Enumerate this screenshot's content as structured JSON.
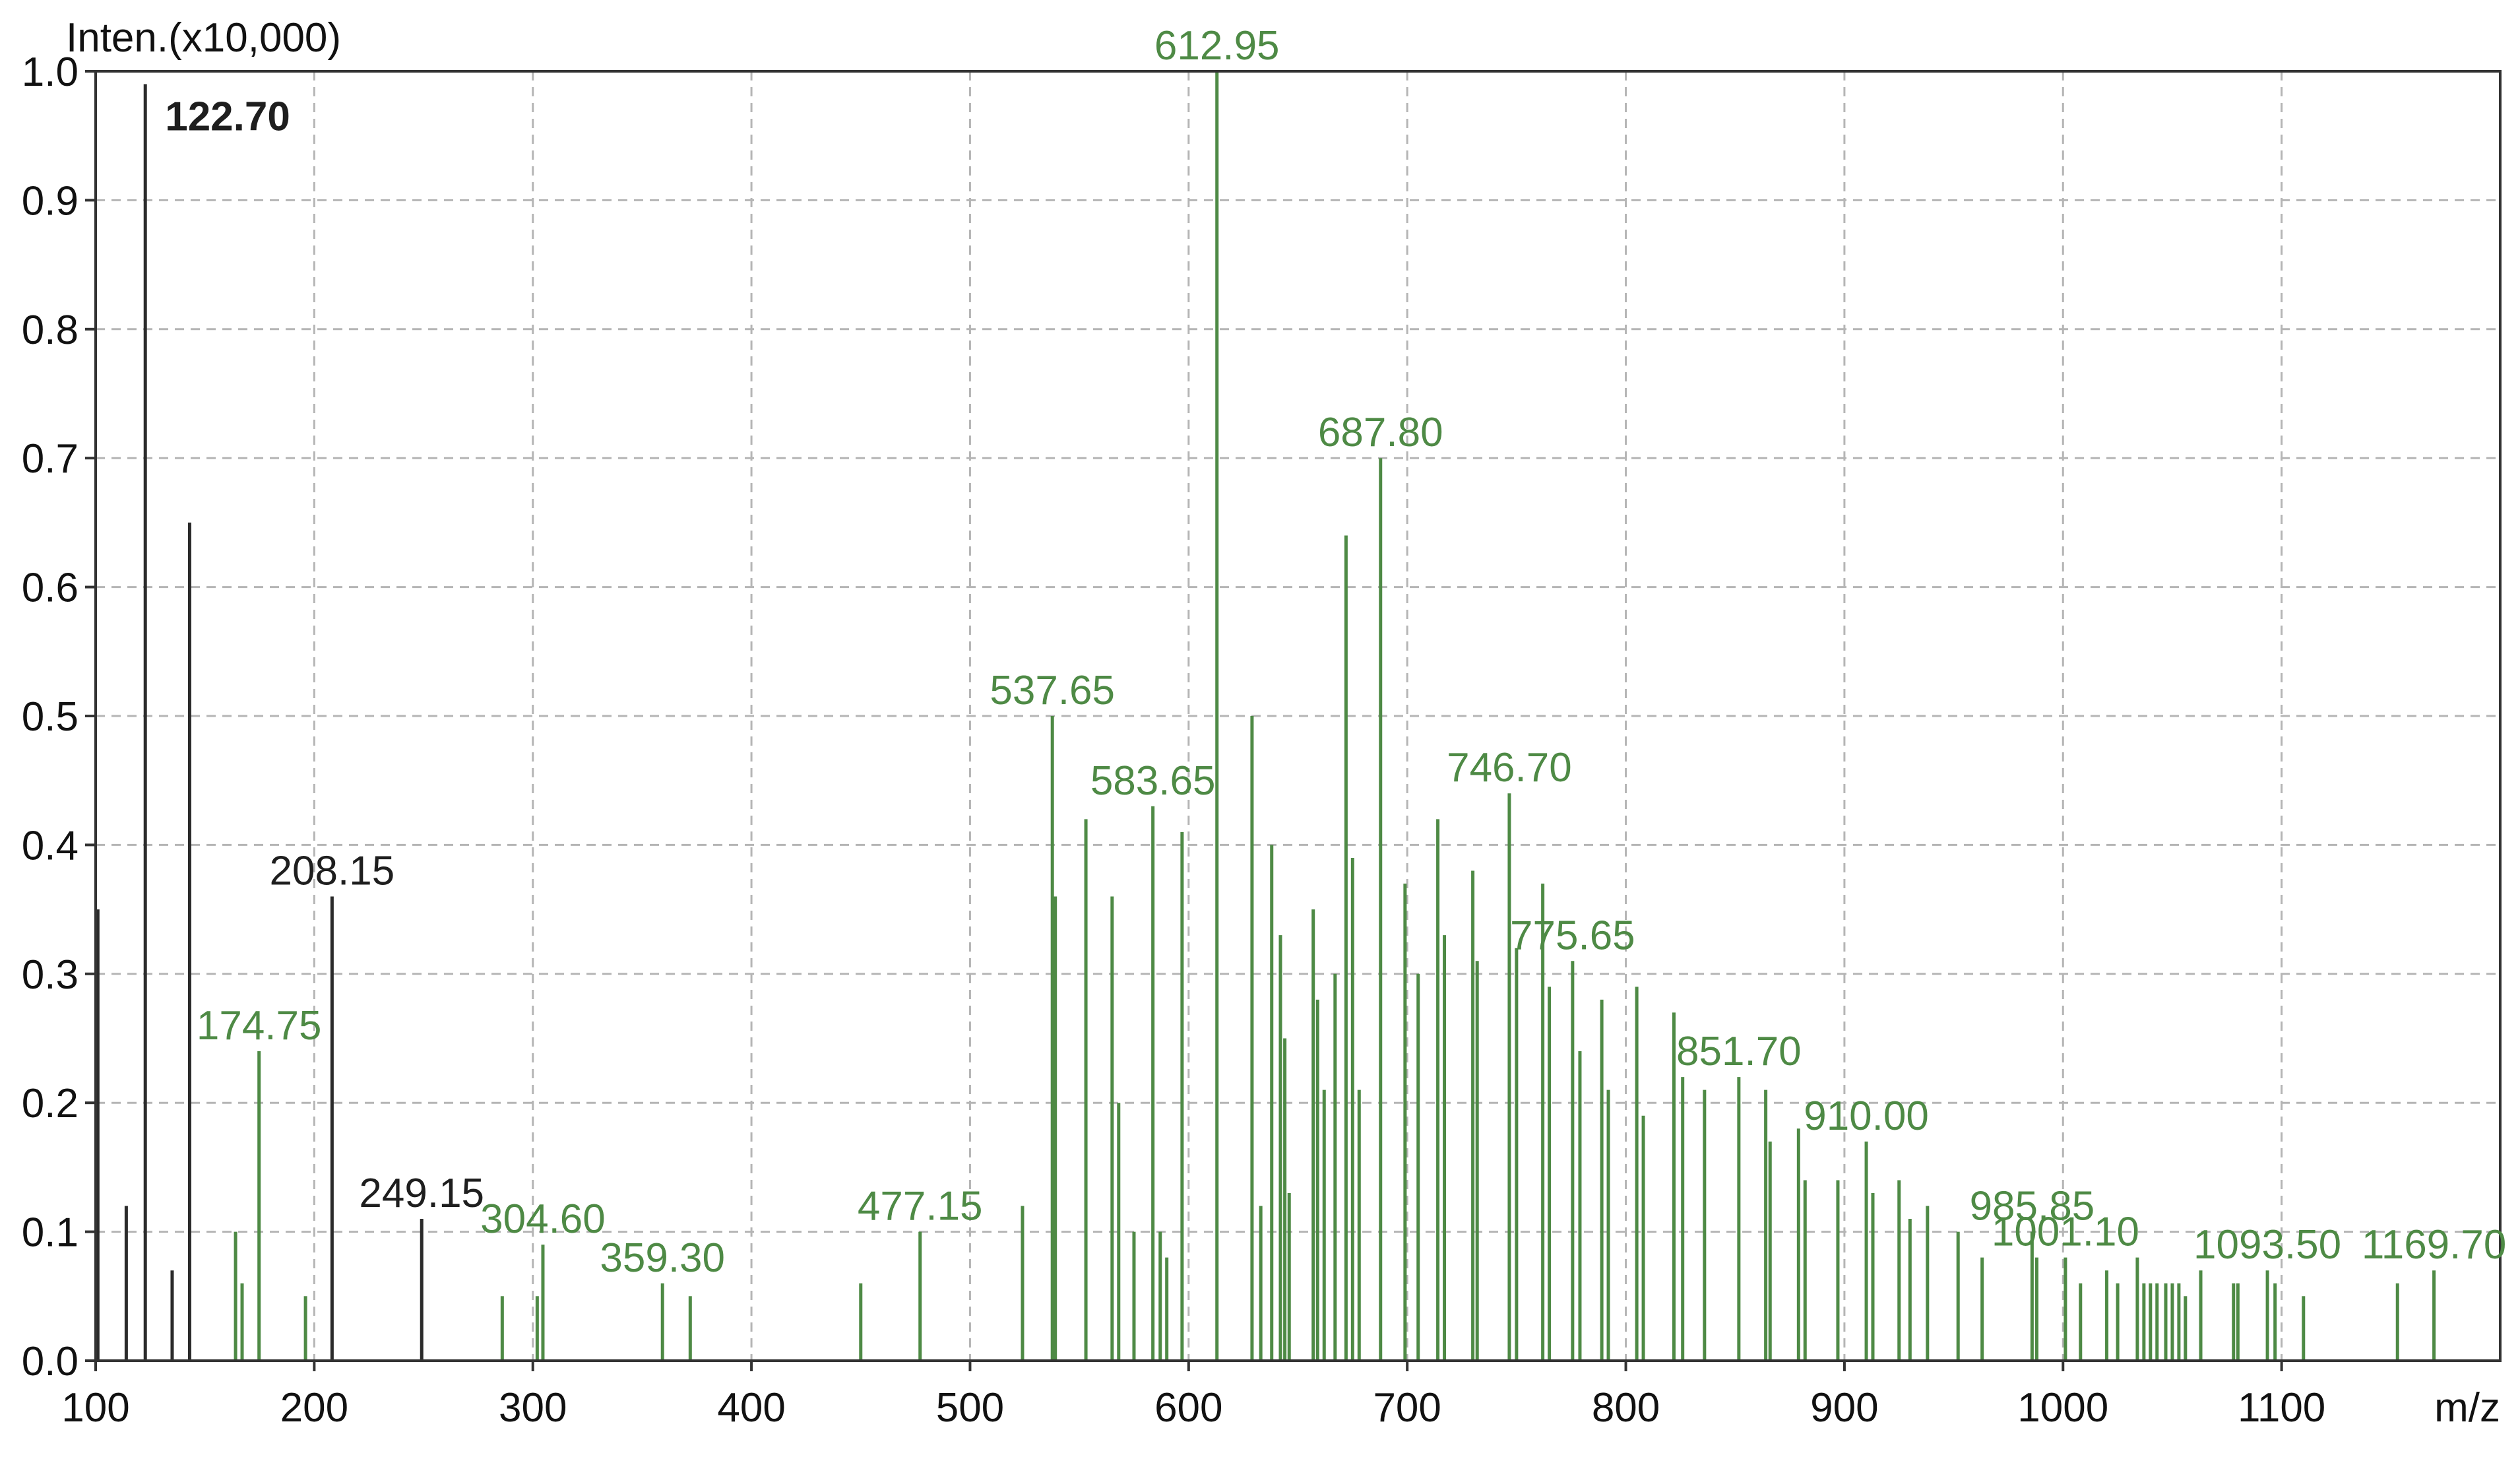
{
  "chart_data": {
    "type": "bar",
    "ylabel": "Inten.(x10,000)",
    "xlabel": "m/z",
    "xlim": [
      100,
      1200
    ],
    "ylim": [
      0,
      1.0
    ],
    "xticks": [
      100,
      200,
      300,
      400,
      500,
      600,
      700,
      800,
      900,
      1000,
      1100
    ],
    "yticks": [
      0.0,
      0.1,
      0.2,
      0.3,
      0.4,
      0.5,
      0.6,
      0.7,
      0.8,
      0.9,
      1.0
    ],
    "grid": true,
    "colors": {
      "dark": "#2b2b2b",
      "green": "#4e8a45"
    },
    "peaks": [
      {
        "x": 101,
        "y": 0.35,
        "c": "dark"
      },
      {
        "x": 114,
        "y": 0.12,
        "c": "dark"
      },
      {
        "x": 122.7,
        "y": 0.99,
        "c": "dark",
        "label": "122.70",
        "bold": true
      },
      {
        "x": 135,
        "y": 0.07,
        "c": "dark"
      },
      {
        "x": 143,
        "y": 0.65,
        "c": "dark"
      },
      {
        "x": 164,
        "y": 0.1,
        "c": "green"
      },
      {
        "x": 167,
        "y": 0.06,
        "c": "green"
      },
      {
        "x": 174.75,
        "y": 0.24,
        "c": "green",
        "label": "174.75"
      },
      {
        "x": 196,
        "y": 0.05,
        "c": "green"
      },
      {
        "x": 208.15,
        "y": 0.36,
        "c": "dark",
        "label": "208.15"
      },
      {
        "x": 249.15,
        "y": 0.11,
        "c": "dark",
        "label": "249.15"
      },
      {
        "x": 286,
        "y": 0.05,
        "c": "green"
      },
      {
        "x": 302,
        "y": 0.05,
        "c": "green"
      },
      {
        "x": 304.6,
        "y": 0.09,
        "c": "green",
        "label": "304.60"
      },
      {
        "x": 359.3,
        "y": 0.06,
        "c": "green",
        "label": "359.30"
      },
      {
        "x": 372,
        "y": 0.05,
        "c": "green"
      },
      {
        "x": 450,
        "y": 0.06,
        "c": "green"
      },
      {
        "x": 477.15,
        "y": 0.1,
        "c": "green",
        "label": "477.15"
      },
      {
        "x": 524,
        "y": 0.12,
        "c": "green"
      },
      {
        "x": 537.65,
        "y": 0.5,
        "c": "green",
        "label": "537.65"
      },
      {
        "x": 539,
        "y": 0.36,
        "c": "green"
      },
      {
        "x": 553,
        "y": 0.42,
        "c": "green"
      },
      {
        "x": 565,
        "y": 0.36,
        "c": "green"
      },
      {
        "x": 568,
        "y": 0.2,
        "c": "green"
      },
      {
        "x": 575,
        "y": 0.1,
        "c": "green"
      },
      {
        "x": 583.65,
        "y": 0.43,
        "c": "green",
        "label": "583.65"
      },
      {
        "x": 587,
        "y": 0.1,
        "c": "green"
      },
      {
        "x": 590,
        "y": 0.08,
        "c": "green"
      },
      {
        "x": 597,
        "y": 0.41,
        "c": "green"
      },
      {
        "x": 612.95,
        "y": 1.0,
        "c": "green",
        "label": "612.95"
      },
      {
        "x": 629,
        "y": 0.5,
        "c": "green"
      },
      {
        "x": 633,
        "y": 0.12,
        "c": "green"
      },
      {
        "x": 638,
        "y": 0.4,
        "c": "green"
      },
      {
        "x": 642,
        "y": 0.33,
        "c": "green"
      },
      {
        "x": 644,
        "y": 0.25,
        "c": "green"
      },
      {
        "x": 646,
        "y": 0.13,
        "c": "green"
      },
      {
        "x": 657,
        "y": 0.35,
        "c": "green"
      },
      {
        "x": 659,
        "y": 0.28,
        "c": "green"
      },
      {
        "x": 662,
        "y": 0.21,
        "c": "green"
      },
      {
        "x": 667,
        "y": 0.3,
        "c": "green"
      },
      {
        "x": 672,
        "y": 0.64,
        "c": "green"
      },
      {
        "x": 675,
        "y": 0.39,
        "c": "green"
      },
      {
        "x": 678,
        "y": 0.21,
        "c": "green"
      },
      {
        "x": 687.8,
        "y": 0.7,
        "c": "green",
        "label": "687.80"
      },
      {
        "x": 699,
        "y": 0.37,
        "c": "green"
      },
      {
        "x": 705,
        "y": 0.3,
        "c": "green"
      },
      {
        "x": 714,
        "y": 0.42,
        "c": "green"
      },
      {
        "x": 717,
        "y": 0.33,
        "c": "green"
      },
      {
        "x": 730,
        "y": 0.38,
        "c": "green"
      },
      {
        "x": 732,
        "y": 0.31,
        "c": "green"
      },
      {
        "x": 746.7,
        "y": 0.44,
        "c": "green",
        "label": "746.70"
      },
      {
        "x": 750,
        "y": 0.32,
        "c": "green"
      },
      {
        "x": 762,
        "y": 0.37,
        "c": "green"
      },
      {
        "x": 765,
        "y": 0.29,
        "c": "green"
      },
      {
        "x": 775.65,
        "y": 0.31,
        "c": "green",
        "label": "775.65"
      },
      {
        "x": 779,
        "y": 0.24,
        "c": "green"
      },
      {
        "x": 789,
        "y": 0.28,
        "c": "green"
      },
      {
        "x": 792,
        "y": 0.21,
        "c": "green"
      },
      {
        "x": 805,
        "y": 0.29,
        "c": "green"
      },
      {
        "x": 808,
        "y": 0.19,
        "c": "green"
      },
      {
        "x": 822,
        "y": 0.27,
        "c": "green"
      },
      {
        "x": 826,
        "y": 0.22,
        "c": "green"
      },
      {
        "x": 836,
        "y": 0.21,
        "c": "green"
      },
      {
        "x": 851.7,
        "y": 0.22,
        "c": "green",
        "label": "851.70"
      },
      {
        "x": 864,
        "y": 0.21,
        "c": "green"
      },
      {
        "x": 866,
        "y": 0.17,
        "c": "green"
      },
      {
        "x": 879,
        "y": 0.18,
        "c": "green"
      },
      {
        "x": 882,
        "y": 0.14,
        "c": "green"
      },
      {
        "x": 897,
        "y": 0.14,
        "c": "green"
      },
      {
        "x": 910.0,
        "y": 0.17,
        "c": "green",
        "label": "910.00"
      },
      {
        "x": 913,
        "y": 0.13,
        "c": "green"
      },
      {
        "x": 925,
        "y": 0.14,
        "c": "green"
      },
      {
        "x": 930,
        "y": 0.11,
        "c": "green"
      },
      {
        "x": 938,
        "y": 0.12,
        "c": "green"
      },
      {
        "x": 952,
        "y": 0.1,
        "c": "green"
      },
      {
        "x": 963,
        "y": 0.08,
        "c": "green"
      },
      {
        "x": 985.85,
        "y": 0.1,
        "c": "green",
        "label": "985.85"
      },
      {
        "x": 988,
        "y": 0.08,
        "c": "green"
      },
      {
        "x": 1001.1,
        "y": 0.08,
        "c": "green",
        "label": "1001.10"
      },
      {
        "x": 1008,
        "y": 0.06,
        "c": "green"
      },
      {
        "x": 1020,
        "y": 0.07,
        "c": "green"
      },
      {
        "x": 1025,
        "y": 0.06,
        "c": "green"
      },
      {
        "x": 1034,
        "y": 0.08,
        "c": "green"
      },
      {
        "x": 1037,
        "y": 0.06,
        "c": "green"
      },
      {
        "x": 1040,
        "y": 0.06,
        "c": "green"
      },
      {
        "x": 1043,
        "y": 0.06,
        "c": "green"
      },
      {
        "x": 1047,
        "y": 0.06,
        "c": "green"
      },
      {
        "x": 1050,
        "y": 0.06,
        "c": "green"
      },
      {
        "x": 1053,
        "y": 0.06,
        "c": "green"
      },
      {
        "x": 1056,
        "y": 0.05,
        "c": "green"
      },
      {
        "x": 1063,
        "y": 0.07,
        "c": "green"
      },
      {
        "x": 1078,
        "y": 0.06,
        "c": "green"
      },
      {
        "x": 1080,
        "y": 0.06,
        "c": "green"
      },
      {
        "x": 1093.5,
        "y": 0.07,
        "c": "green",
        "label": "1093.50"
      },
      {
        "x": 1097,
        "y": 0.06,
        "c": "green"
      },
      {
        "x": 1110,
        "y": 0.05,
        "c": "green"
      },
      {
        "x": 1153,
        "y": 0.06,
        "c": "green"
      },
      {
        "x": 1169.7,
        "y": 0.07,
        "c": "green",
        "label": "1169.70"
      }
    ]
  }
}
